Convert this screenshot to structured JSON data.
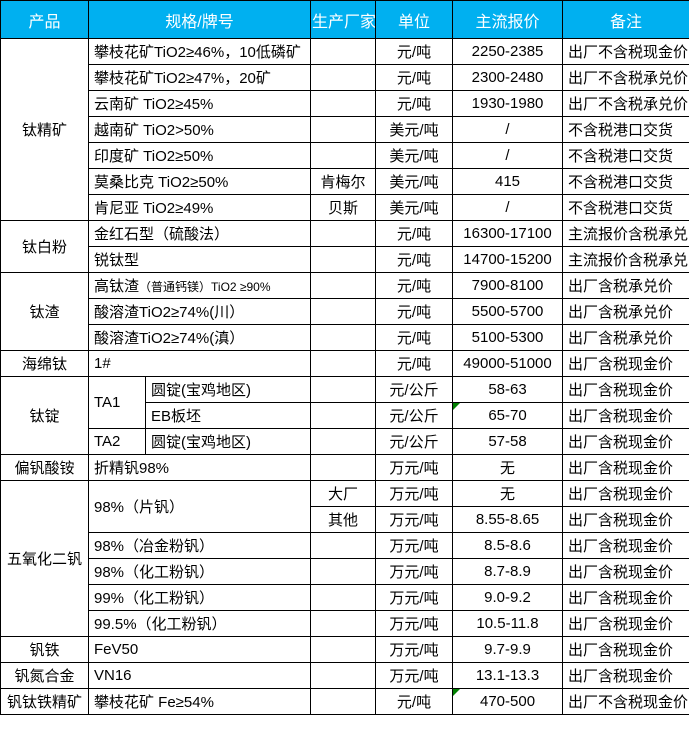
{
  "colors": {
    "header_bg": "#00B0F0",
    "header_fg": "#FFFFFF",
    "border": "#000000",
    "comment_marker_green": "#008000",
    "cell_bg": "#FFFFFF",
    "text": "#000000"
  },
  "header": {
    "cells": [
      {
        "t": "产品",
        "cs": 1
      },
      {
        "t": "规格/牌号",
        "cs": 2
      },
      {
        "t": "生产厂家",
        "cs": 1
      },
      {
        "t": "单位",
        "cs": 1
      },
      {
        "t": "主流报价",
        "cs": 1
      },
      {
        "t": "备注",
        "cs": 1
      }
    ]
  },
  "rows": [
    [
      {
        "n": "product-cell",
        "t": "钛精矿",
        "rs": 7,
        "a": "c"
      },
      {
        "n": "spec-cell",
        "t": "攀枝花矿TiO2≥46%，10低磷矿",
        "cs": 2,
        "a": "l"
      },
      {
        "n": "maker-cell",
        "t": "",
        "a": "c"
      },
      {
        "n": "unit-cell",
        "t": "元/吨",
        "a": "c"
      },
      {
        "n": "price-cell",
        "t": "2250-2385",
        "a": "c"
      },
      {
        "n": "note-cell",
        "t": "出厂不含税现金价",
        "a": "l"
      }
    ],
    [
      {
        "n": "spec-cell",
        "t": "攀枝花矿TiO2≥47%，20矿",
        "cs": 2,
        "a": "l"
      },
      {
        "n": "maker-cell",
        "t": "",
        "a": "c"
      },
      {
        "n": "unit-cell",
        "t": "元/吨",
        "a": "c"
      },
      {
        "n": "price-cell",
        "t": "2300-2480",
        "a": "c"
      },
      {
        "n": "note-cell",
        "t": "出厂不含税承兑价",
        "a": "l"
      }
    ],
    [
      {
        "n": "spec-cell",
        "t": "云南矿 TiO2≥45%",
        "cs": 2,
        "a": "l"
      },
      {
        "n": "maker-cell",
        "t": "",
        "a": "c"
      },
      {
        "n": "unit-cell",
        "t": "元/吨",
        "a": "c"
      },
      {
        "n": "price-cell",
        "t": "1930-1980",
        "a": "c"
      },
      {
        "n": "note-cell",
        "t": "出厂不含税承兑价",
        "a": "l"
      }
    ],
    [
      {
        "n": "spec-cell",
        "t": "越南矿 TiO2>50%",
        "cs": 2,
        "a": "l"
      },
      {
        "n": "maker-cell",
        "t": "",
        "a": "c"
      },
      {
        "n": "unit-cell",
        "t": "美元/吨",
        "a": "c"
      },
      {
        "n": "price-cell",
        "t": "/",
        "a": "c"
      },
      {
        "n": "note-cell",
        "t": "不含税港口交货",
        "a": "l"
      }
    ],
    [
      {
        "n": "spec-cell",
        "t": "印度矿 TiO2≥50%",
        "cs": 2,
        "a": "l"
      },
      {
        "n": "maker-cell",
        "t": "",
        "a": "c"
      },
      {
        "n": "unit-cell",
        "t": "美元/吨",
        "a": "c"
      },
      {
        "n": "price-cell",
        "t": "/",
        "a": "c"
      },
      {
        "n": "note-cell",
        "t": "不含税港口交货",
        "a": "l"
      }
    ],
    [
      {
        "n": "spec-cell",
        "t": "莫桑比克 TiO2≥50%",
        "cs": 2,
        "a": "l"
      },
      {
        "n": "maker-cell",
        "t": "肯梅尔",
        "a": "c"
      },
      {
        "n": "unit-cell",
        "t": "美元/吨",
        "a": "c"
      },
      {
        "n": "price-cell",
        "t": "415",
        "a": "c"
      },
      {
        "n": "note-cell",
        "t": "不含税港口交货",
        "a": "l"
      }
    ],
    [
      {
        "n": "spec-cell",
        "t": "肯尼亚 TiO2≥49%",
        "cs": 2,
        "a": "l"
      },
      {
        "n": "maker-cell",
        "t": "贝斯",
        "a": "c"
      },
      {
        "n": "unit-cell",
        "t": "美元/吨",
        "a": "c"
      },
      {
        "n": "price-cell",
        "t": "/",
        "a": "c"
      },
      {
        "n": "note-cell",
        "t": "不含税港口交货",
        "a": "l"
      }
    ],
    [
      {
        "n": "product-cell",
        "t": "钛白粉",
        "rs": 2,
        "a": "c"
      },
      {
        "n": "spec-cell",
        "t": "金红石型（硫酸法）",
        "cs": 2,
        "a": "l"
      },
      {
        "n": "maker-cell",
        "t": "",
        "a": "c"
      },
      {
        "n": "unit-cell",
        "t": "元/吨",
        "a": "c"
      },
      {
        "n": "price-cell",
        "t": "16300-17100",
        "a": "c"
      },
      {
        "n": "note-cell",
        "t": "主流报价含税承兑",
        "a": "l"
      }
    ],
    [
      {
        "n": "spec-cell",
        "t": "锐钛型",
        "cs": 2,
        "a": "l"
      },
      {
        "n": "maker-cell",
        "t": "",
        "a": "c"
      },
      {
        "n": "unit-cell",
        "t": "元/吨",
        "a": "c"
      },
      {
        "n": "price-cell",
        "t": "14700-15200",
        "a": "c"
      },
      {
        "n": "note-cell",
        "t": "主流报价含税承兑",
        "a": "l"
      }
    ],
    [
      {
        "n": "product-cell",
        "t": "钛渣",
        "rs": 3,
        "a": "c"
      },
      {
        "n": "spec-cell",
        "t": "高钛渣",
        "sm": "（普通钙镁）TiO2 ≥90%",
        "cs": 2,
        "a": "l"
      },
      {
        "n": "maker-cell",
        "t": "",
        "a": "c"
      },
      {
        "n": "unit-cell",
        "t": "元/吨",
        "a": "c"
      },
      {
        "n": "price-cell",
        "t": "7900-8100",
        "a": "c"
      },
      {
        "n": "note-cell",
        "t": "出厂含税承兑价",
        "a": "l"
      }
    ],
    [
      {
        "n": "spec-cell",
        "t": "酸溶渣TiO2≥74%(川）",
        "cs": 2,
        "a": "l"
      },
      {
        "n": "maker-cell",
        "t": "",
        "a": "c"
      },
      {
        "n": "unit-cell",
        "t": "元/吨",
        "a": "c"
      },
      {
        "n": "price-cell",
        "t": "5500-5700",
        "a": "c"
      },
      {
        "n": "note-cell",
        "t": "出厂含税承兑价",
        "a": "l"
      }
    ],
    [
      {
        "n": "spec-cell",
        "t": "酸溶渣TiO2≥74%(滇）",
        "cs": 2,
        "a": "l"
      },
      {
        "n": "maker-cell",
        "t": "",
        "a": "c"
      },
      {
        "n": "unit-cell",
        "t": "元/吨",
        "a": "c"
      },
      {
        "n": "price-cell",
        "t": "5100-5300",
        "a": "c"
      },
      {
        "n": "note-cell",
        "t": "出厂含税承兑价",
        "a": "l"
      }
    ],
    [
      {
        "n": "product-cell",
        "t": "海绵钛",
        "a": "c"
      },
      {
        "n": "spec-cell",
        "t": "1#",
        "cs": 2,
        "a": "l"
      },
      {
        "n": "maker-cell",
        "t": "",
        "a": "c"
      },
      {
        "n": "unit-cell",
        "t": "元/吨",
        "a": "c"
      },
      {
        "n": "price-cell",
        "t": "49000-51000",
        "a": "c"
      },
      {
        "n": "note-cell",
        "t": "出厂含税现金价",
        "a": "l"
      }
    ],
    [
      {
        "n": "product-cell",
        "t": "钛锭",
        "rs": 3,
        "a": "c"
      },
      {
        "n": "spec-grade-cell",
        "t": "TA1",
        "rs": 2,
        "a": "l"
      },
      {
        "n": "spec-shape-cell",
        "t": "圆锭(宝鸡地区)",
        "a": "l"
      },
      {
        "n": "maker-cell",
        "t": "",
        "a": "c"
      },
      {
        "n": "unit-cell",
        "t": "元/公斤",
        "a": "c"
      },
      {
        "n": "price-cell",
        "t": "58-63",
        "a": "c"
      },
      {
        "n": "note-cell",
        "t": "出厂含税现金价",
        "a": "l"
      }
    ],
    [
      {
        "n": "spec-shape-cell",
        "t": "EB板坯",
        "a": "l"
      },
      {
        "n": "maker-cell",
        "t": "",
        "a": "c"
      },
      {
        "n": "unit-cell",
        "t": "元/公斤",
        "a": "c"
      },
      {
        "n": "price-cell",
        "t": "65-70",
        "a": "c",
        "m": true
      },
      {
        "n": "note-cell",
        "t": "出厂含税现金价",
        "a": "l"
      }
    ],
    [
      {
        "n": "spec-grade-cell",
        "t": "TA2",
        "a": "l"
      },
      {
        "n": "spec-shape-cell",
        "t": "圆锭(宝鸡地区)",
        "a": "l"
      },
      {
        "n": "maker-cell",
        "t": "",
        "a": "c"
      },
      {
        "n": "unit-cell",
        "t": "元/公斤",
        "a": "c"
      },
      {
        "n": "price-cell",
        "t": "57-58",
        "a": "c"
      },
      {
        "n": "note-cell",
        "t": "出厂含税现金价",
        "a": "l"
      }
    ],
    [
      {
        "n": "product-cell",
        "t": "偏钒酸铵",
        "a": "c"
      },
      {
        "n": "spec-cell",
        "t": "折精钒98%",
        "cs": 2,
        "a": "l"
      },
      {
        "n": "maker-cell",
        "t": "",
        "a": "c"
      },
      {
        "n": "unit-cell",
        "t": "万元/吨",
        "a": "c"
      },
      {
        "n": "price-cell",
        "t": "无",
        "a": "c"
      },
      {
        "n": "note-cell",
        "t": "出厂含税现金价",
        "a": "l"
      }
    ],
    [
      {
        "n": "product-cell",
        "t": "五氧化二钒",
        "rs": 6,
        "a": "c"
      },
      {
        "n": "spec-cell",
        "t": "98%（片钒）",
        "cs": 2,
        "rs": 2,
        "a": "l"
      },
      {
        "n": "maker-cell",
        "t": "大厂",
        "a": "c"
      },
      {
        "n": "unit-cell",
        "t": "万元/吨",
        "a": "c"
      },
      {
        "n": "price-cell",
        "t": "无",
        "a": "c"
      },
      {
        "n": "note-cell",
        "t": "出厂含税现金价",
        "a": "l"
      }
    ],
    [
      {
        "n": "maker-cell",
        "t": "其他",
        "a": "c"
      },
      {
        "n": "unit-cell",
        "t": "万元/吨",
        "a": "c"
      },
      {
        "n": "price-cell",
        "t": "8.55-8.65",
        "a": "c"
      },
      {
        "n": "note-cell",
        "t": "出厂含税现金价",
        "a": "l"
      }
    ],
    [
      {
        "n": "spec-cell",
        "t": "98%（冶金粉钒）",
        "cs": 2,
        "a": "l"
      },
      {
        "n": "maker-cell",
        "t": "",
        "a": "c"
      },
      {
        "n": "unit-cell",
        "t": "万元/吨",
        "a": "c"
      },
      {
        "n": "price-cell",
        "t": "8.5-8.6",
        "a": "c"
      },
      {
        "n": "note-cell",
        "t": "出厂含税现金价",
        "a": "l"
      }
    ],
    [
      {
        "n": "spec-cell",
        "t": "98%（化工粉钒）",
        "cs": 2,
        "a": "l"
      },
      {
        "n": "maker-cell",
        "t": "",
        "a": "c"
      },
      {
        "n": "unit-cell",
        "t": "万元/吨",
        "a": "c"
      },
      {
        "n": "price-cell",
        "t": "8.7-8.9",
        "a": "c"
      },
      {
        "n": "note-cell",
        "t": "出厂含税现金价",
        "a": "l"
      }
    ],
    [
      {
        "n": "spec-cell",
        "t": "99%（化工粉钒）",
        "cs": 2,
        "a": "l"
      },
      {
        "n": "maker-cell",
        "t": "",
        "a": "c"
      },
      {
        "n": "unit-cell",
        "t": "万元/吨",
        "a": "c"
      },
      {
        "n": "price-cell",
        "t": "9.0-9.2",
        "a": "c"
      },
      {
        "n": "note-cell",
        "t": "出厂含税现金价",
        "a": "l"
      }
    ],
    [
      {
        "n": "spec-cell",
        "t": "99.5%（化工粉钒）",
        "cs": 2,
        "a": "l"
      },
      {
        "n": "maker-cell",
        "t": "",
        "a": "c"
      },
      {
        "n": "unit-cell",
        "t": "万元/吨",
        "a": "c"
      },
      {
        "n": "price-cell",
        "t": "10.5-11.8",
        "a": "c"
      },
      {
        "n": "note-cell",
        "t": "出厂含税现金价",
        "a": "l"
      }
    ],
    [
      {
        "n": "product-cell",
        "t": "钒铁",
        "a": "c"
      },
      {
        "n": "spec-cell",
        "t": "FeV50",
        "cs": 2,
        "a": "l"
      },
      {
        "n": "maker-cell",
        "t": "",
        "a": "c"
      },
      {
        "n": "unit-cell",
        "t": "万元/吨",
        "a": "c"
      },
      {
        "n": "price-cell",
        "t": "9.7-9.9",
        "a": "c"
      },
      {
        "n": "note-cell",
        "t": "出厂含税现金价",
        "a": "l"
      }
    ],
    [
      {
        "n": "product-cell",
        "t": "钒氮合金",
        "a": "c"
      },
      {
        "n": "spec-cell",
        "t": "VN16",
        "cs": 2,
        "a": "l"
      },
      {
        "n": "maker-cell",
        "t": "",
        "a": "c"
      },
      {
        "n": "unit-cell",
        "t": "万元/吨",
        "a": "c"
      },
      {
        "n": "price-cell",
        "t": "13.1-13.3",
        "a": "c"
      },
      {
        "n": "note-cell",
        "t": "出厂含税现金价",
        "a": "l"
      }
    ],
    [
      {
        "n": "product-cell",
        "t": "钒钛铁精矿",
        "a": "c"
      },
      {
        "n": "spec-cell",
        "t": "攀枝花矿 Fe≥54%",
        "cs": 2,
        "a": "l"
      },
      {
        "n": "maker-cell",
        "t": "",
        "a": "c"
      },
      {
        "n": "unit-cell",
        "t": "元/吨",
        "a": "c"
      },
      {
        "n": "price-cell",
        "t": "470-500",
        "a": "c",
        "m": true
      },
      {
        "n": "note-cell",
        "t": "出厂不含税现金价",
        "a": "l"
      }
    ]
  ]
}
